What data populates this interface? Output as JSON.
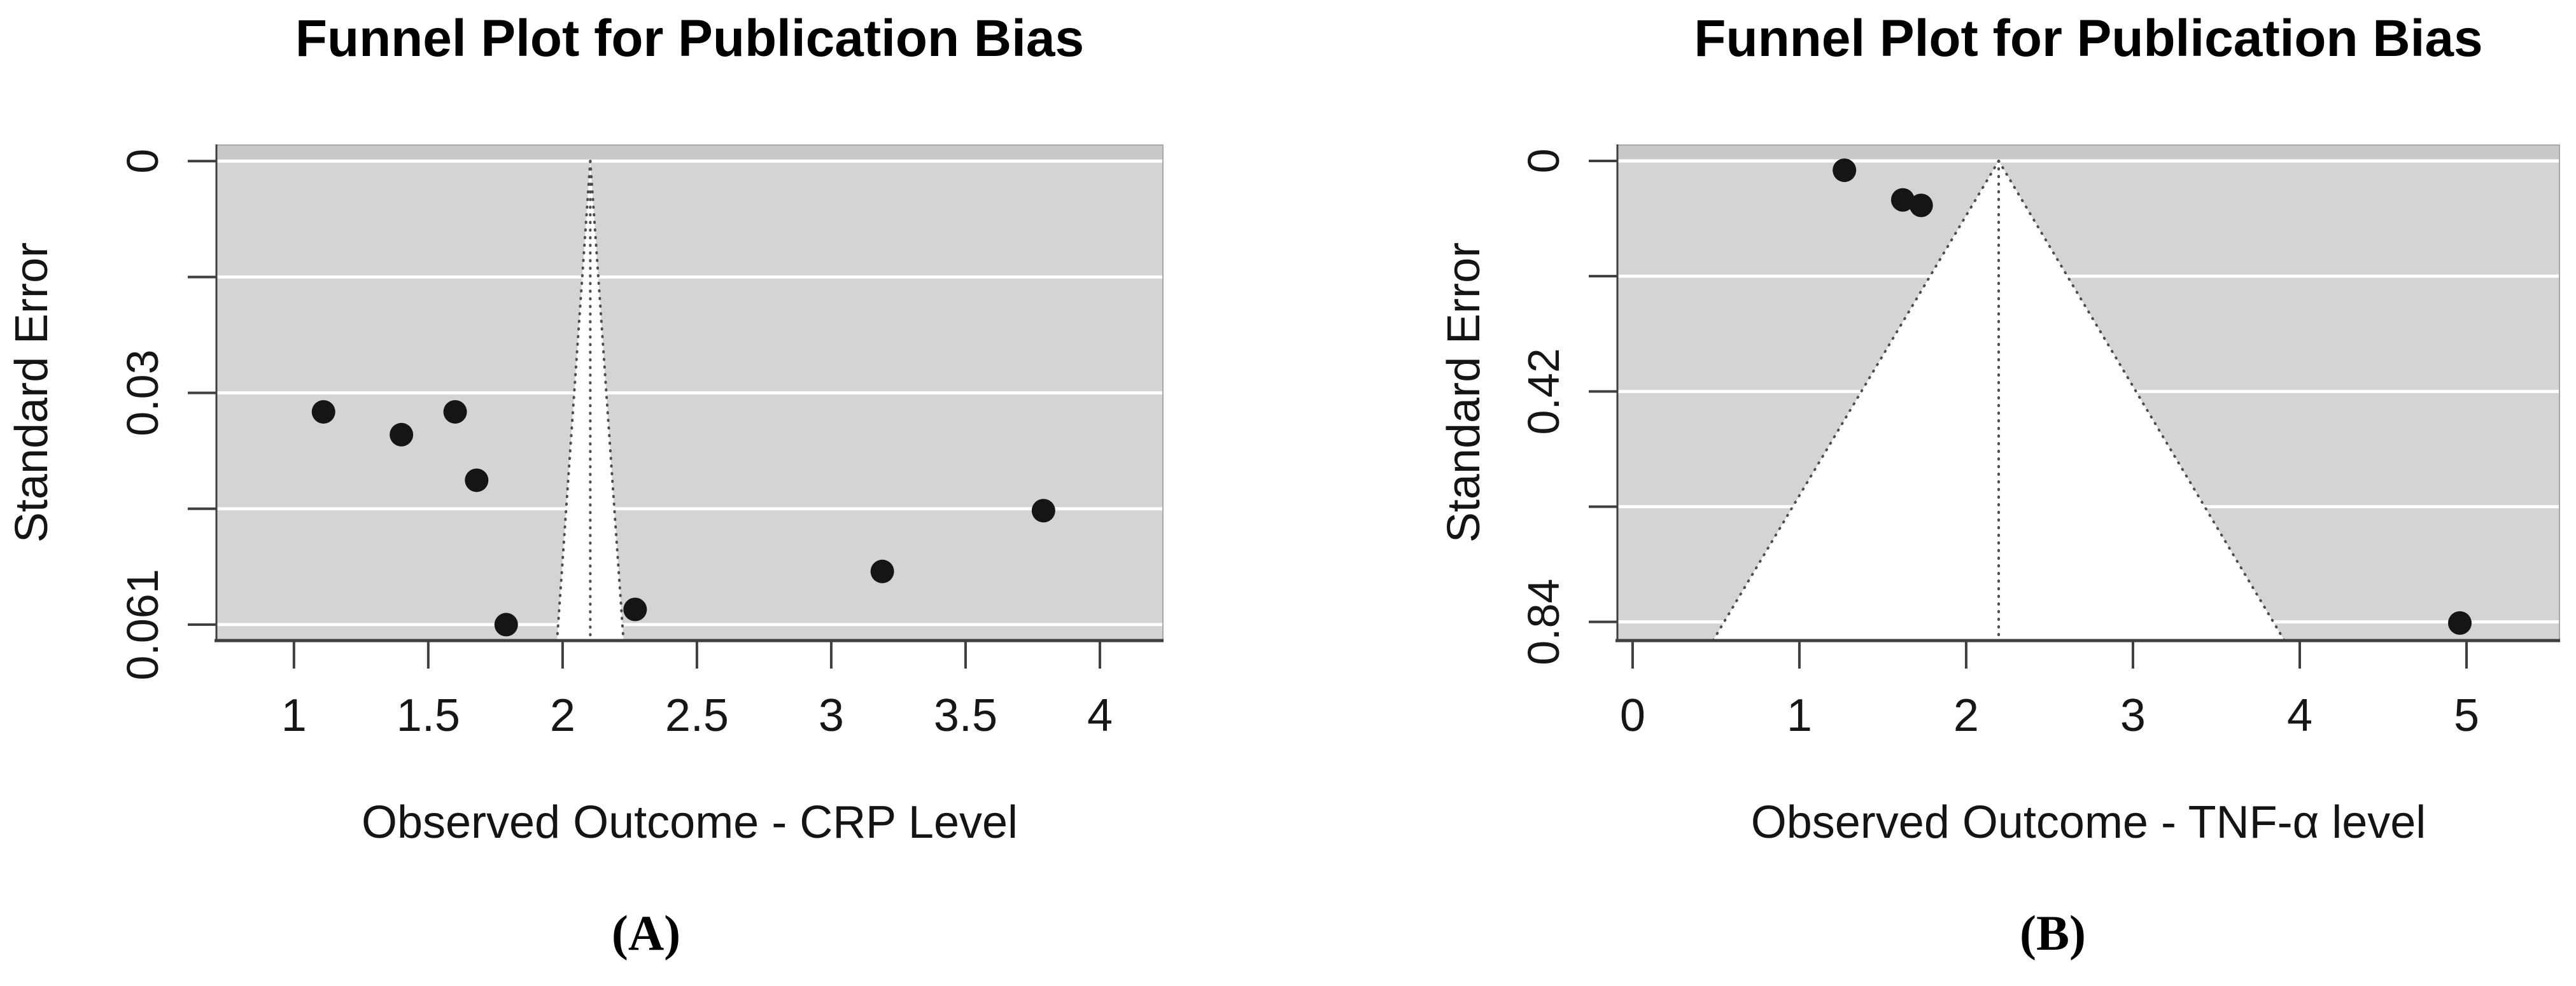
{
  "figure_title": "Funnel Plot for Publication Bias",
  "colors": {
    "page_background": "#ffffff",
    "plot_background": "#d4d4d4",
    "upper_band": "#c9c9c9",
    "gridline": "#ffffff",
    "funnel_fill": "#ffffff",
    "funnel_outline": "#4d4d4d",
    "point": "#151515",
    "axis": "#3f3f3f",
    "box_light": "#a8a8a8",
    "text": "#000000"
  },
  "chart_data": [
    {
      "panel": "A",
      "type": "scatter",
      "variant": "funnel",
      "title": "Funnel Plot for Publication Bias",
      "xlabel": "Observed Outcome - CRP Level",
      "ylabel": "Standard Error",
      "caption": "(A)",
      "xlim": [
        0.709,
        4.237
      ],
      "ylim_se": [
        -0.0022,
        0.0631
      ],
      "x_ticks": {
        "values": [
          1,
          1.5,
          2,
          2.5,
          3,
          3.5,
          4
        ],
        "labels": [
          "1",
          "1.5",
          "2",
          "2.5",
          "3",
          "3.5",
          "4"
        ]
      },
      "y_ticks": {
        "values": [
          0,
          0.01525,
          0.0305,
          0.04575,
          0.061
        ],
        "labels": [
          "0",
          "",
          "0.03",
          "",
          "0.061"
        ]
      },
      "estimate": 2.103,
      "ci_multiplier": 1.96,
      "grid": true,
      "legend": false,
      "points": [
        {
          "x": 1.11,
          "se": 0.033
        },
        {
          "x": 1.4,
          "se": 0.036
        },
        {
          "x": 1.6,
          "se": 0.033
        },
        {
          "x": 1.68,
          "se": 0.042
        },
        {
          "x": 1.79,
          "se": 0.061
        },
        {
          "x": 2.27,
          "se": 0.059
        },
        {
          "x": 3.19,
          "se": 0.054
        },
        {
          "x": 3.79,
          "se": 0.046
        }
      ]
    },
    {
      "panel": "B",
      "type": "scatter",
      "variant": "funnel",
      "title": "Funnel Plot for Publication Bias",
      "xlabel": "Observed Outcome - TNF-α level",
      "ylabel": "Standard Error",
      "caption": "(B)",
      "xlim": [
        -0.095,
        5.561
      ],
      "ylim_se": [
        -0.0301,
        0.874
      ],
      "x_ticks": {
        "values": [
          0,
          1,
          2,
          3,
          4,
          5
        ],
        "labels": [
          "0",
          "1",
          "2",
          "3",
          "4",
          "5"
        ]
      },
      "y_ticks": {
        "values": [
          0,
          0.21,
          0.42,
          0.63,
          0.84
        ],
        "labels": [
          "0",
          "",
          "0.42",
          "",
          "0.84"
        ]
      },
      "estimate": 2.195,
      "ci_multiplier": 1.96,
      "grid": true,
      "legend": false,
      "points": [
        {
          "x": 1.27,
          "se": 0.017
        },
        {
          "x": 1.62,
          "se": 0.071
        },
        {
          "x": 1.73,
          "se": 0.081
        },
        {
          "x": 4.96,
          "se": 0.842
        }
      ]
    }
  ]
}
